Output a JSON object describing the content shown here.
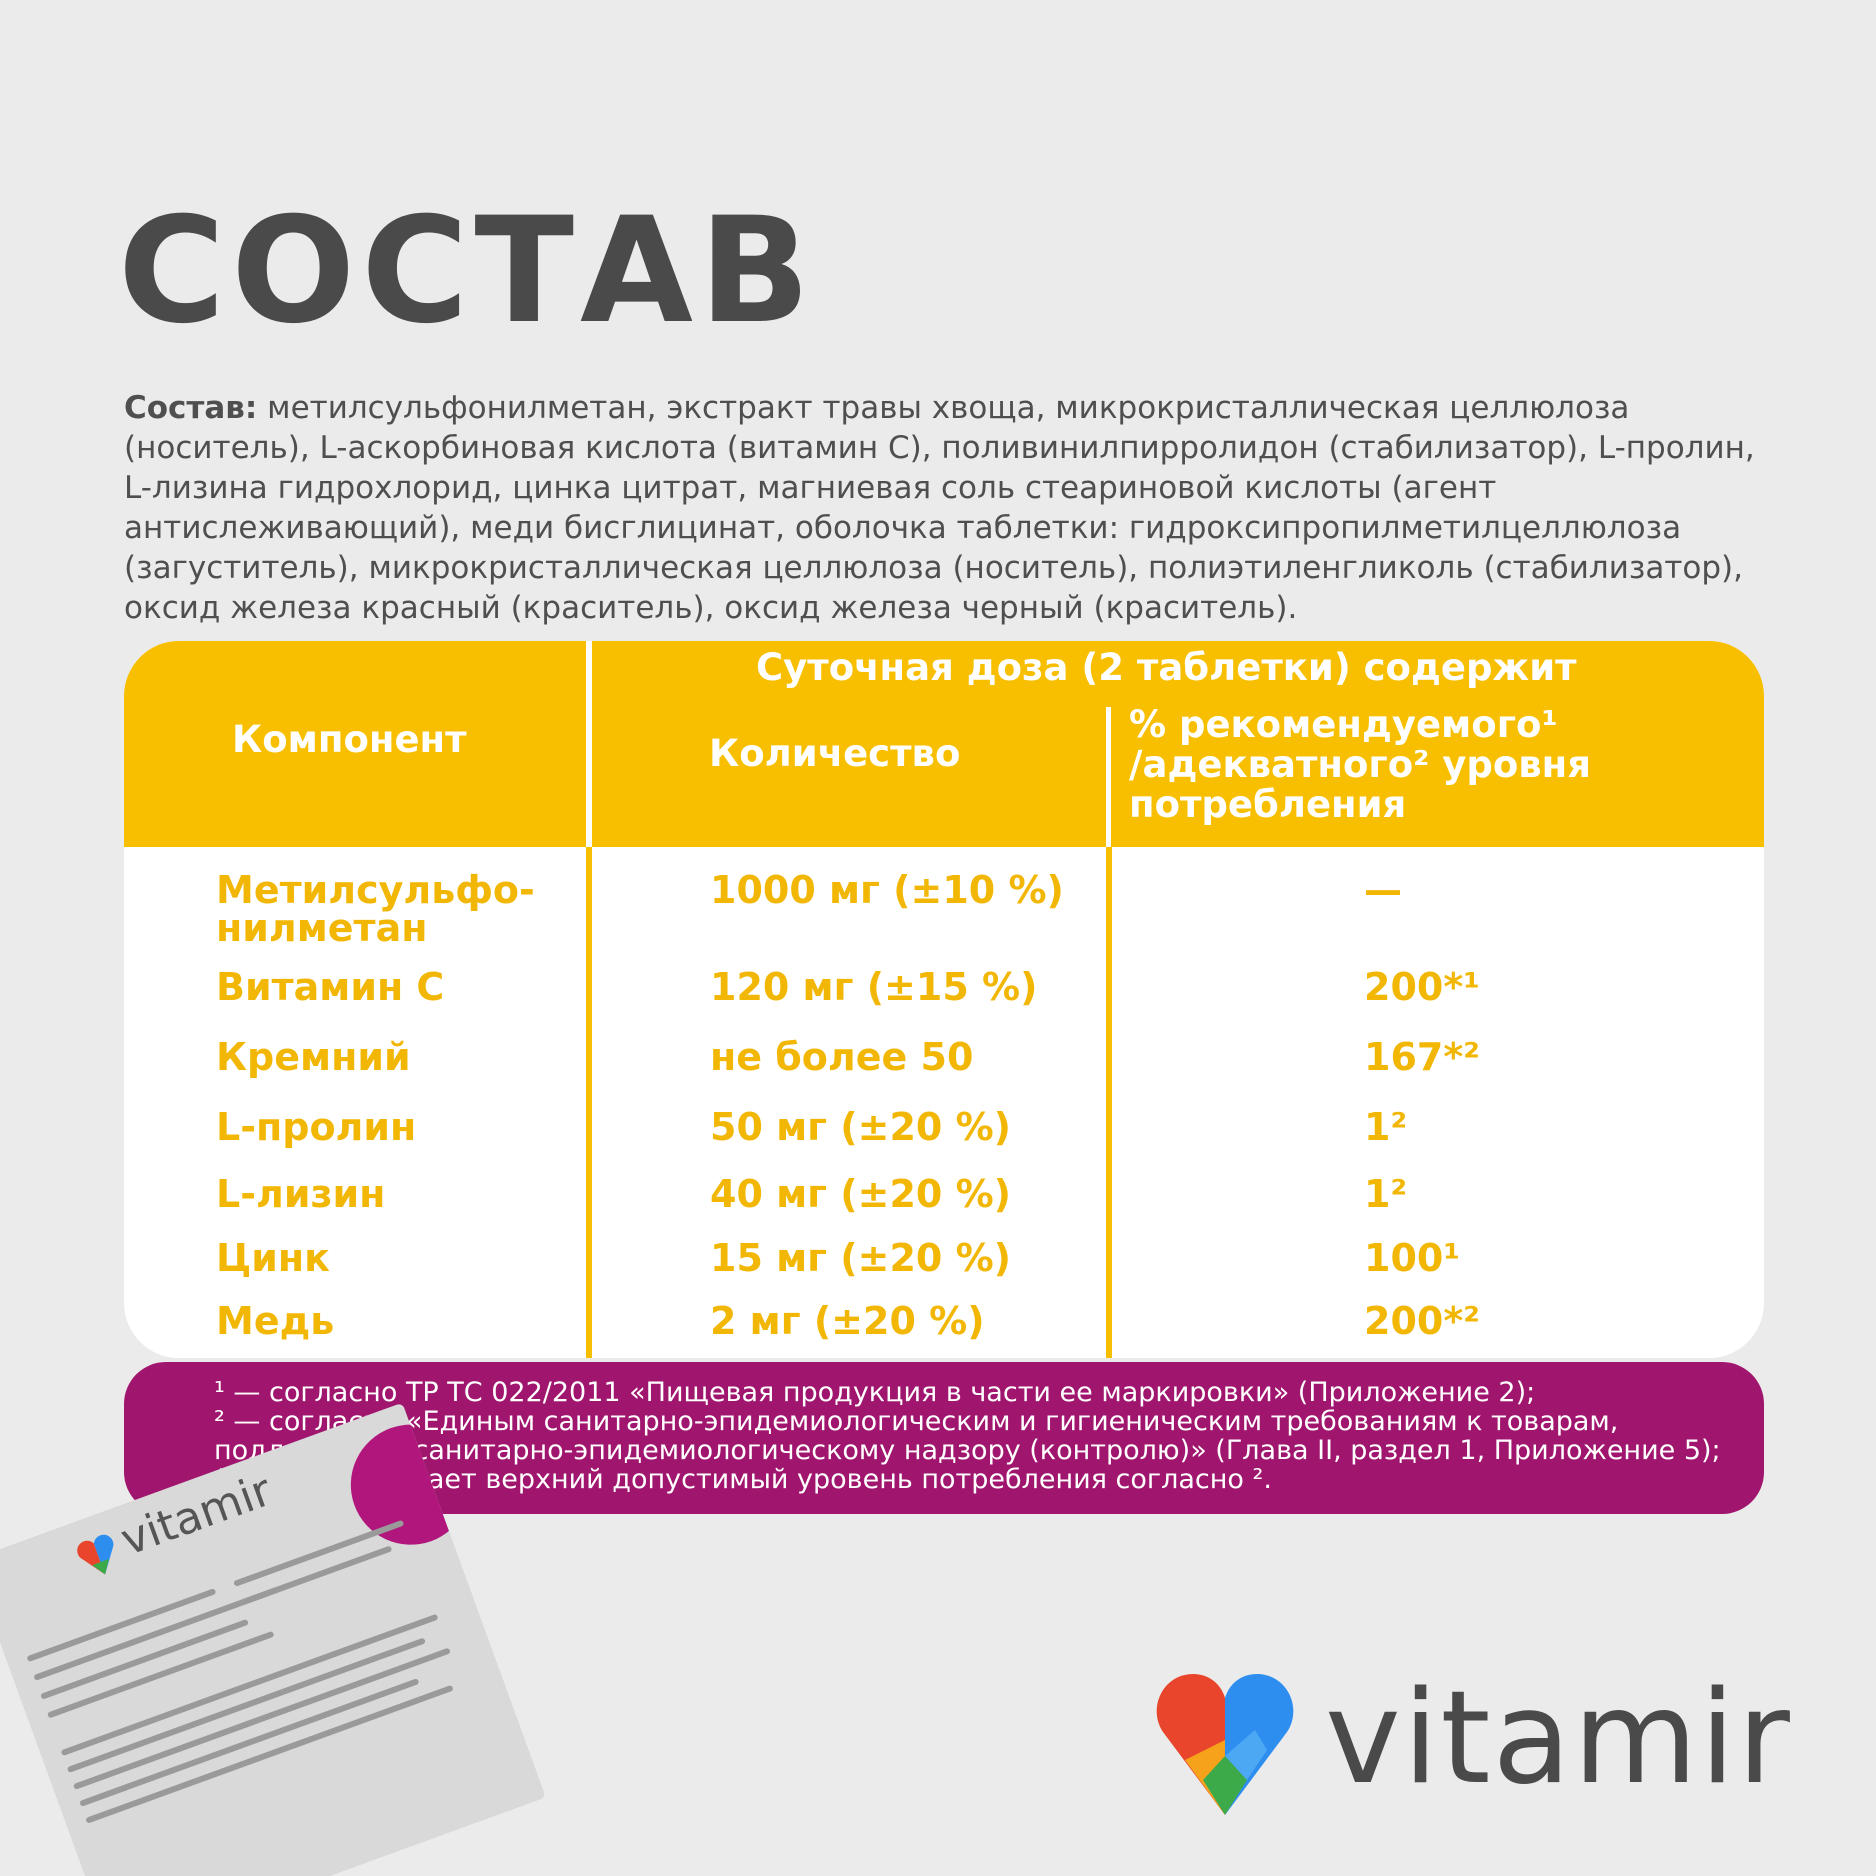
{
  "title": "СОСТАВ",
  "composition": {
    "label": "Состав:",
    "text": " метилсульфонилметан, экстракт травы хвоща, микрокристаллическая целлюлоза (носитель), L-аскорбиновая кислота (витамин С), поливинилпирролидон (стабилизатор), L-пролин, L-лизина гидрохлорид, цинка цитрат, магниевая соль стеариновой кислоты (агент антислеживающий), меди бисглицинат, оболочка таблетки: гидроксипропилметилцеллюлоза (загуститель), микрокристаллическая целлюлоза (носитель), полиэтиленгликоль (стабилизатор), оксид железа красный (краситель), оксид железа черный (краситель)."
  },
  "table": {
    "header": {
      "component": "Компонент",
      "daily_dose": "Суточная доза (2 таблетки) содержит",
      "quantity": "Количество",
      "percent_line1": "% рекомендуемого¹",
      "percent_line2": "/адекватного² уровня",
      "percent_line3": "потребления"
    },
    "rows": [
      {
        "component": "Метилсульфо-нилметан",
        "quantity": "1000 мг (±10 %)",
        "percent": "—"
      },
      {
        "component": "Витамин С",
        "quantity": "120 мг (±15 %)",
        "percent": "200*¹"
      },
      {
        "component": "Кремний",
        "quantity": "не более 50",
        "percent": "167*²"
      },
      {
        "component": "L-пролин",
        "quantity": "50 мг (±20 %)",
        "percent": "1²"
      },
      {
        "component": "L-лизин",
        "quantity": "40 мг (±20 %)",
        "percent": "1²"
      },
      {
        "component": "Цинк",
        "quantity": "15 мг (±20 %)",
        "percent": "100¹"
      },
      {
        "component": "Медь",
        "quantity": "2 мг (±20 %)",
        "percent": "200*²"
      }
    ]
  },
  "footnotes": {
    "line1": "¹ — согласно ТР ТС 022/2011 «Пищевая продукция в части ее маркировки» (Приложение 2);",
    "line2": "² — согласно «Единым санитарно-эпидемиологическим и гигиеническим требованиям к товарам, подлежащим санитарно-эпидемиологическому надзору (контролю)» (Глава II, раздел 1, Приложение 5); * — не превышает верхний допустимый уровень потребления согласно ²."
  },
  "package": {
    "brand": "vitamir"
  },
  "brand": {
    "name": "vitamir"
  },
  "colors": {
    "background": "#ebebeb",
    "title": "#4a4a4a",
    "accent_yellow": "#f7bf00",
    "footnote_purple": "#a0166f",
    "logo_red": "#e8452c",
    "logo_orange": "#f7a21b",
    "logo_blue": "#2d8ef0",
    "logo_green": "#3daa4a"
  }
}
